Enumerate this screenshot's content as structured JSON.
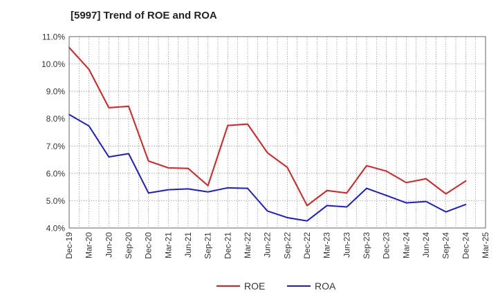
{
  "chart_data": {
    "type": "line",
    "title": "[5997]  Trend of ROE and ROA",
    "xlabel": "",
    "ylabel": "",
    "ylim": [
      4.0,
      11.0
    ],
    "ytick_labels": [
      "4.0%",
      "5.0%",
      "6.0%",
      "7.0%",
      "8.0%",
      "9.0%",
      "10.0%",
      "11.0%"
    ],
    "categories": [
      "Dec-19",
      "Mar-20",
      "Jun-20",
      "Sep-20",
      "Dec-20",
      "Mar-21",
      "Jun-21",
      "Sep-21",
      "Dec-21",
      "Mar-22",
      "Jun-22",
      "Sep-22",
      "Dec-22",
      "Mar-23",
      "Jun-23",
      "Sep-23",
      "Dec-23",
      "Mar-24",
      "Jun-24",
      "Sep-24",
      "Dec-24",
      "Mar-25"
    ],
    "grid": true,
    "legend_position": "bottom",
    "series": [
      {
        "name": "ROE",
        "color": "#e31a1c",
        "values": [
          10.6,
          9.8,
          8.4,
          8.45,
          6.45,
          6.2,
          6.18,
          5.55,
          7.75,
          7.8,
          6.75,
          6.22,
          4.82,
          5.37,
          5.28,
          6.28,
          6.08,
          5.66,
          5.8,
          5.25,
          5.72,
          null
        ]
      },
      {
        "name": "ROA",
        "color": "#1a1adc",
        "values": [
          8.15,
          7.73,
          6.6,
          6.72,
          5.28,
          5.4,
          5.43,
          5.32,
          5.47,
          5.45,
          4.62,
          4.38,
          4.26,
          4.82,
          4.77,
          5.45,
          5.19,
          4.92,
          4.97,
          4.59,
          4.86,
          null
        ]
      }
    ]
  }
}
